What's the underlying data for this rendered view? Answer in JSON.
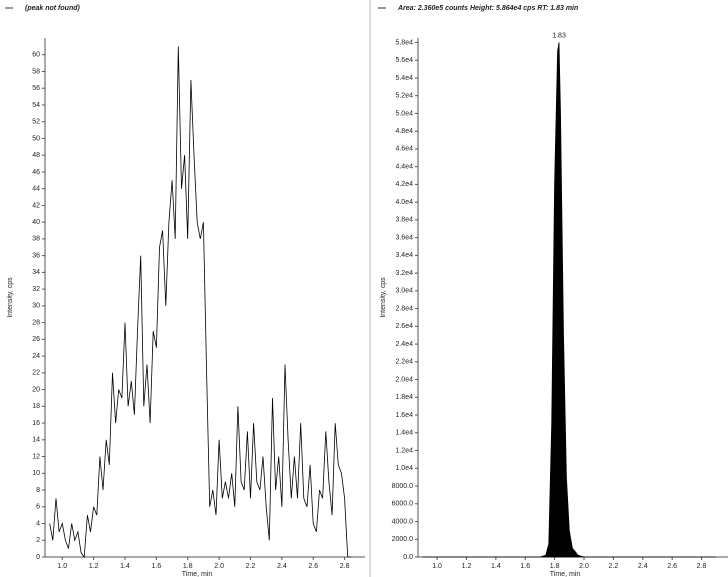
{
  "chart_data": [
    {
      "type": "line",
      "subtitle": "(peak not found)",
      "xlabel": "Time, min",
      "ylabel": "Intensity, cps",
      "xlim": [
        0.89,
        2.93
      ],
      "ylim": [
        0,
        62
      ],
      "xticks": [
        {
          "value": 1,
          "label": "1.0"
        },
        1.2,
        1.4,
        1.6,
        1.8,
        {
          "value": 2,
          "label": "2.0"
        },
        2.2,
        2.4,
        2.6,
        2.8
      ],
      "yticks": [
        0,
        2,
        4,
        6,
        8,
        10,
        12,
        14,
        16,
        18,
        20,
        22,
        24,
        26,
        28,
        30,
        32,
        34,
        36,
        38,
        40,
        42,
        44,
        46,
        48,
        50,
        52,
        54,
        56,
        58,
        60
      ],
      "x": [
        0.92,
        0.94,
        0.96,
        0.98,
        1.0,
        1.02,
        1.04,
        1.06,
        1.08,
        1.1,
        1.12,
        1.14,
        1.16,
        1.18,
        1.2,
        1.22,
        1.24,
        1.26,
        1.28,
        1.3,
        1.32,
        1.34,
        1.36,
        1.38,
        1.4,
        1.42,
        1.44,
        1.46,
        1.48,
        1.5,
        1.52,
        1.54,
        1.56,
        1.58,
        1.6,
        1.62,
        1.64,
        1.66,
        1.68,
        1.7,
        1.72,
        1.74,
        1.76,
        1.78,
        1.8,
        1.82,
        1.84,
        1.86,
        1.88,
        1.9,
        1.92,
        1.94,
        1.96,
        1.98,
        2.0,
        2.02,
        2.04,
        2.06,
        2.08,
        2.1,
        2.12,
        2.14,
        2.16,
        2.18,
        2.2,
        2.22,
        2.24,
        2.26,
        2.28,
        2.3,
        2.32,
        2.34,
        2.36,
        2.38,
        2.4,
        2.42,
        2.44,
        2.46,
        2.48,
        2.5,
        2.52,
        2.54,
        2.56,
        2.58,
        2.6,
        2.62,
        2.64,
        2.66,
        2.68,
        2.7,
        2.72,
        2.74,
        2.76,
        2.78,
        2.8,
        2.82,
        2.84
      ],
      "series": [
        {
          "color": "#000000",
          "values": [
            4,
            2,
            7,
            3,
            4,
            2,
            1,
            4,
            2,
            3,
            0.5,
            0,
            5,
            3,
            6,
            5,
            12,
            8,
            14,
            11,
            22,
            16,
            20,
            19,
            28,
            18,
            21,
            17,
            27,
            36,
            18,
            23,
            16,
            27,
            25,
            37,
            39,
            30,
            40,
            45,
            38,
            61,
            44,
            48,
            38,
            57,
            48,
            40,
            38,
            40,
            22,
            6,
            8,
            5,
            14,
            7,
            9,
            7,
            10,
            6,
            18,
            9,
            8,
            15,
            7,
            16,
            9,
            8,
            12,
            6,
            2,
            19,
            8,
            12,
            6,
            23,
            14,
            7,
            12,
            7,
            16,
            7,
            6,
            11,
            4,
            3,
            8,
            7,
            15,
            9,
            5,
            16,
            11,
            10,
            7,
            0,
            0
          ]
        }
      ]
    },
    {
      "type": "area",
      "subtitle": "Area: 2.360e5 counts Height: 5.864e4 cps RT: 1.83 min",
      "xlabel": "Time, min",
      "ylabel": "Intensity, cps",
      "xlim": [
        0.87,
        2.98
      ],
      "ylim": [
        0,
        58500
      ],
      "xticks": [
        {
          "value": 1,
          "label": "1.0"
        },
        1.2,
        1.4,
        1.6,
        1.8,
        {
          "value": 2,
          "label": "2.0"
        },
        2.2,
        2.4,
        2.6,
        2.8
      ],
      "yticks": [
        {
          "value": 0,
          "label": "0.0"
        },
        {
          "value": 2000,
          "label": "2000.0"
        },
        {
          "value": 4000,
          "label": "4000.0"
        },
        {
          "value": 6000,
          "label": "6000.0"
        },
        {
          "value": 8000,
          "label": "8000.0"
        },
        {
          "value": 10000,
          "label": "1.0e4"
        },
        {
          "value": 12000,
          "label": "1.2e4"
        },
        {
          "value": 14000,
          "label": "1.4e4"
        },
        {
          "value": 16000,
          "label": "1.6e4"
        },
        {
          "value": 18000,
          "label": "1.8e4"
        },
        {
          "value": 20000,
          "label": "2.0e4"
        },
        {
          "value": 22000,
          "label": "2.2e4"
        },
        {
          "value": 24000,
          "label": "2.4e4"
        },
        {
          "value": 26000,
          "label": "2.6e4"
        },
        {
          "value": 28000,
          "label": "2.8e4"
        },
        {
          "value": 30000,
          "label": "3.0e4"
        },
        {
          "value": 32000,
          "label": "3.2e4"
        },
        {
          "value": 34000,
          "label": "3.4e4"
        },
        {
          "value": 36000,
          "label": "3.6e4"
        },
        {
          "value": 38000,
          "label": "3.8e4"
        },
        {
          "value": 40000,
          "label": "4.0e4"
        },
        {
          "value": 42000,
          "label": "4.2e4"
        },
        {
          "value": 44000,
          "label": "4.4e4"
        },
        {
          "value": 46000,
          "label": "4.6e4"
        },
        {
          "value": 48000,
          "label": "4.8e4"
        },
        {
          "value": 50000,
          "label": "5.0e4"
        },
        {
          "value": 52000,
          "label": "5.2e4"
        },
        {
          "value": 54000,
          "label": "5.4e4"
        },
        {
          "value": 56000,
          "label": "5.6e4"
        },
        {
          "value": 58000,
          "label": "5.8e4"
        }
      ],
      "x": [
        0.9,
        1.7,
        1.74,
        1.76,
        1.78,
        1.8,
        1.82,
        1.83,
        1.84,
        1.86,
        1.88,
        1.9,
        1.92,
        1.96,
        2.0,
        2.9
      ],
      "series": [
        {
          "color": "#000000",
          "values": [
            0,
            0,
            200,
            1500,
            15000,
            42000,
            57000,
            58000,
            50000,
            25000,
            9000,
            3000,
            1000,
            200,
            0,
            0
          ]
        }
      ],
      "annotations": [
        {
          "text": "1.83",
          "x": 1.83
        }
      ]
    }
  ]
}
